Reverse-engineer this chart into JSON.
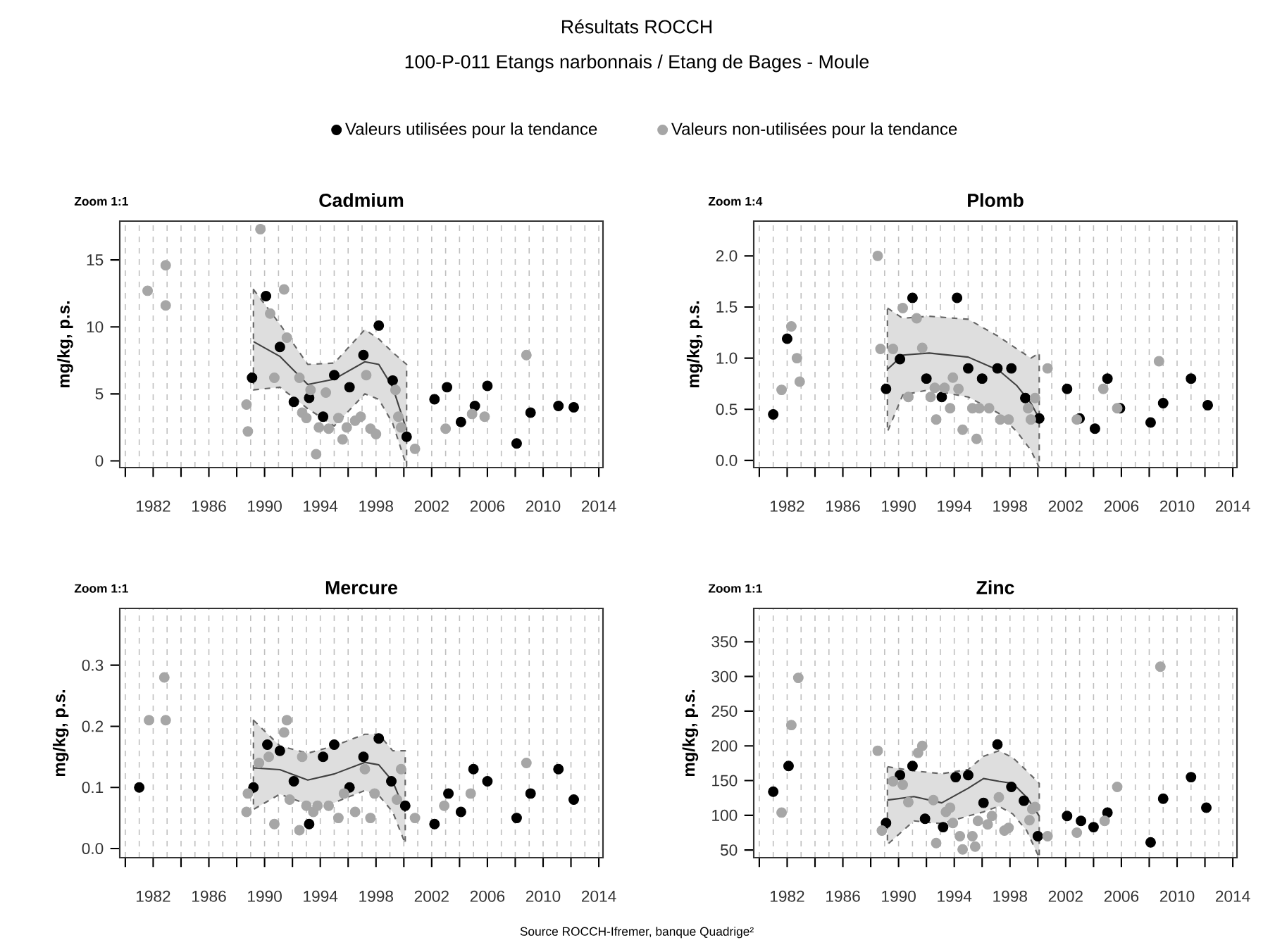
{
  "chart_data": [
    {
      "type": "scatter",
      "title": "Cadmium",
      "ylabel": "mg/kg, p.s.",
      "annotations": [
        "Zoom 1:1",
        "Résultats ROCCH",
        "100-P-011 Etangs narbonnais / Etang de Bages - Moule"
      ],
      "legend": "top",
      "grid": "x",
      "xlim": [
        1979.6,
        2014.3
      ],
      "xticks": [
        {
          "value": 1980,
          "label": null
        },
        1982,
        {
          "value": 1984,
          "label": null
        },
        1986,
        {
          "value": 1988,
          "label": null
        },
        1990,
        {
          "value": 1992,
          "label": null
        },
        1994,
        {
          "value": 1996,
          "label": null
        },
        1998,
        {
          "value": 2000,
          "label": null
        },
        2002,
        {
          "value": 2004,
          "label": null
        },
        2006,
        {
          "value": 2008,
          "label": null
        },
        2010,
        {
          "value": 2012,
          "label": null
        },
        2014
      ],
      "ylim": [
        -0.5,
        17.9
      ],
      "yticks": [
        0,
        5,
        10,
        15
      ],
      "series": [
        {
          "type": "line",
          "marker": "none",
          "color": "#404040",
          "x": [
            1989.2,
            1991.1,
            1993.1,
            1995.0,
            1997.2,
            1998.2,
            1999.2,
            2000.2
          ],
          "values": [
            8.9,
            7.8,
            5.7,
            6.1,
            7.4,
            7.2,
            5.5,
            2.3
          ],
          "upper": [
            12.8,
            10.2,
            7.2,
            7.3,
            9.8,
            9.1,
            8.1,
            7.2
          ],
          "lower": [
            5.3,
            5.5,
            3.9,
            2.6,
            5.0,
            4.6,
            2.8,
            -0.4
          ]
        },
        {
          "name": "Valeurs utilisées pour la tendance",
          "marker": "circle",
          "color": "#000000",
          "x": [
            1989.1,
            1990.1,
            1991.1,
            1992.1,
            1993.2,
            1994.2,
            1995.0,
            1996.1,
            1997.1,
            1998.2,
            1999.2,
            2000.2,
            2002.2,
            2003.1,
            2004.1,
            2005.1,
            2006.0,
            2008.1,
            2009.1,
            2011.1,
            2012.2
          ],
          "values": [
            6.2,
            12.3,
            8.5,
            4.4,
            4.7,
            3.3,
            6.4,
            5.5,
            7.9,
            10.1,
            6.0,
            1.8,
            4.6,
            5.5,
            2.9,
            4.1,
            5.6,
            1.3,
            3.6,
            4.1,
            4.0
          ]
        },
        {
          "name": "Valeurs non-utilisées pour la tendance",
          "marker": "circle",
          "color": "#a6a6a6",
          "x": [
            1981.6,
            1982.9,
            1982.9,
            1988.7,
            1988.8,
            1989.7,
            1990.4,
            1990.7,
            1991.4,
            1991.6,
            1992.5,
            1992.7,
            1993.0,
            1993.3,
            1993.7,
            1993.9,
            1994.4,
            1994.6,
            1995.3,
            1995.6,
            1995.9,
            1996.5,
            1996.9,
            1997.3,
            1997.6,
            1998.0,
            1999.4,
            1999.6,
            1999.8,
            2000.8,
            2003.0,
            2004.9,
            2005.8,
            2008.8
          ],
          "values": [
            12.7,
            14.6,
            11.6,
            4.2,
            2.2,
            17.3,
            11.0,
            6.2,
            12.8,
            9.2,
            6.2,
            3.6,
            3.2,
            5.3,
            0.5,
            2.5,
            5.1,
            2.4,
            3.2,
            1.6,
            2.5,
            3.0,
            3.3,
            6.4,
            2.4,
            2.0,
            5.3,
            3.3,
            2.5,
            0.9,
            2.4,
            3.5,
            3.3,
            7.9
          ]
        }
      ]
    },
    {
      "type": "scatter",
      "title": "Plomb",
      "ylabel": "mg/kg, p.s.",
      "annotations": [
        "Zoom 1:4"
      ],
      "grid": "x",
      "xlim": [
        1979.6,
        2014.3
      ],
      "xticks": [
        {
          "value": 1980,
          "label": null
        },
        1982,
        {
          "value": 1984,
          "label": null
        },
        1986,
        {
          "value": 1988,
          "label": null
        },
        1990,
        {
          "value": 1992,
          "label": null
        },
        1994,
        {
          "value": 1996,
          "label": null
        },
        1998,
        {
          "value": 2000,
          "label": null
        },
        2002,
        {
          "value": 2004,
          "label": null
        },
        2006,
        {
          "value": 2008,
          "label": null
        },
        2010,
        {
          "value": 2012,
          "label": null
        },
        2014
      ],
      "ylim": [
        -0.07,
        2.34
      ],
      "yticks": [
        {
          "value": 0,
          "label": "0.0"
        },
        0.5,
        {
          "value": 1,
          "label": "1.0"
        },
        1.5,
        {
          "value": 2,
          "label": "2.0"
        }
      ],
      "series": [
        {
          "type": "line",
          "marker": "none",
          "color": "#404040",
          "x": [
            1989.2,
            1990.3,
            1992.2,
            1995.0,
            1997.2,
            1998.5,
            1999.5,
            2000.1
          ],
          "values": [
            0.89,
            1.03,
            1.05,
            1.01,
            0.88,
            0.73,
            0.56,
            0.41
          ],
          "upper": [
            1.49,
            1.39,
            1.41,
            1.38,
            1.21,
            1.09,
            1.0,
            1.05
          ],
          "lower": [
            0.28,
            0.64,
            0.69,
            0.62,
            0.46,
            0.28,
            0.1,
            -0.07
          ]
        },
        {
          "marker": "circle",
          "color": "#000000",
          "x": [
            1981.0,
            1982.0,
            1989.1,
            1990.1,
            1991.0,
            1992.0,
            1993.1,
            1994.2,
            1995.0,
            1996.0,
            1997.1,
            1998.1,
            1999.1,
            2000.1,
            2002.1,
            2003.0,
            2004.1,
            2005.0,
            2005.9,
            2008.1,
            2009.0,
            2011.0,
            2012.2
          ],
          "values": [
            0.45,
            1.19,
            0.7,
            0.99,
            1.59,
            0.8,
            0.62,
            1.59,
            0.9,
            0.8,
            0.9,
            0.9,
            0.61,
            0.41,
            0.7,
            0.41,
            0.31,
            0.8,
            0.51,
            0.37,
            0.56,
            0.8,
            0.54
          ]
        },
        {
          "marker": "circle",
          "color": "#a6a6a6",
          "x": [
            1981.6,
            1982.3,
            1982.7,
            1982.9,
            1988.5,
            1988.7,
            1989.6,
            1990.3,
            1990.7,
            1991.3,
            1991.7,
            1992.3,
            1992.6,
            1992.7,
            1993.3,
            1993.7,
            1993.9,
            1994.3,
            1994.6,
            1995.3,
            1995.6,
            1995.8,
            1996.5,
            1997.3,
            1997.9,
            1999.3,
            1999.5,
            1999.8,
            2000.7,
            2002.8,
            2004.7,
            2005.7,
            2008.7
          ],
          "values": [
            0.69,
            1.31,
            1.0,
            0.77,
            2.0,
            1.09,
            1.09,
            1.49,
            0.62,
            1.39,
            1.1,
            0.62,
            0.71,
            0.4,
            0.71,
            0.51,
            0.81,
            0.7,
            0.3,
            0.51,
            0.21,
            0.51,
            0.51,
            0.4,
            0.4,
            0.51,
            0.4,
            0.61,
            0.9,
            0.4,
            0.7,
            0.51,
            0.97
          ]
        }
      ]
    },
    {
      "type": "scatter",
      "title": "Mercure",
      "ylabel": "mg/kg, p.s.",
      "annotations": [
        "Zoom 1:1",
        "Source ROCCH-Ifremer, banque Quadrige²"
      ],
      "grid": "x",
      "xlim": [
        1979.6,
        2014.3
      ],
      "xticks": [
        {
          "value": 1980,
          "label": null
        },
        1982,
        {
          "value": 1984,
          "label": null
        },
        1986,
        {
          "value": 1988,
          "label": null
        },
        1990,
        {
          "value": 1992,
          "label": null
        },
        1994,
        {
          "value": 1996,
          "label": null
        },
        1998,
        {
          "value": 2000,
          "label": null
        },
        2002,
        {
          "value": 2004,
          "label": null
        },
        2006,
        {
          "value": 2008,
          "label": null
        },
        2010,
        {
          "value": 2012,
          "label": null
        },
        2014
      ],
      "ylim": [
        -0.015,
        0.393
      ],
      "yticks": [
        {
          "value": 0,
          "label": "0.0"
        },
        0.1,
        0.2,
        0.3
      ],
      "series": [
        {
          "type": "line",
          "marker": "none",
          "color": "#404040",
          "x": [
            1989.2,
            1991.1,
            1993.1,
            1995.0,
            1997.2,
            1998.2,
            1999.2,
            2000.1
          ],
          "values": [
            0.132,
            0.129,
            0.112,
            0.122,
            0.141,
            0.137,
            0.11,
            0.06
          ],
          "upper": [
            0.21,
            0.168,
            0.156,
            0.168,
            0.187,
            0.187,
            0.16,
            0.16
          ],
          "lower": [
            0.064,
            0.089,
            0.072,
            0.075,
            0.095,
            0.087,
            0.06,
            0.008
          ]
        },
        {
          "marker": "circle",
          "color": "#000000",
          "x": [
            1981.0,
            1989.2,
            1990.2,
            1991.1,
            1992.1,
            1993.2,
            1994.2,
            1995.0,
            1996.1,
            1997.1,
            1998.2,
            1999.1,
            2000.1,
            2002.2,
            2003.2,
            2004.1,
            2005.0,
            2006.0,
            2008.1,
            2009.1,
            2011.1,
            2012.2
          ],
          "values": [
            0.1,
            0.1,
            0.17,
            0.16,
            0.11,
            0.04,
            0.15,
            0.17,
            0.1,
            0.15,
            0.18,
            0.11,
            0.07,
            0.04,
            0.09,
            0.06,
            0.13,
            0.11,
            0.05,
            0.09,
            0.13,
            0.08
          ]
        },
        {
          "marker": "circle",
          "color": "#a6a6a6",
          "x": [
            1981.7,
            1982.8,
            1982.9,
            1988.7,
            1988.8,
            1989.6,
            1990.3,
            1990.7,
            1991.4,
            1991.6,
            1991.8,
            1992.5,
            1992.7,
            1993.0,
            1993.5,
            1993.8,
            1994.6,
            1995.3,
            1995.7,
            1996.5,
            1997.2,
            1997.6,
            1997.9,
            1999.5,
            1999.8,
            2000.8,
            2002.9,
            2004.8,
            2008.8
          ],
          "values": [
            0.21,
            0.28,
            0.21,
            0.06,
            0.09,
            0.14,
            0.15,
            0.04,
            0.19,
            0.21,
            0.08,
            0.03,
            0.15,
            0.07,
            0.06,
            0.07,
            0.07,
            0.05,
            0.09,
            0.06,
            0.13,
            0.05,
            0.09,
            0.08,
            0.13,
            0.05,
            0.07,
            0.09,
            0.14
          ]
        }
      ]
    },
    {
      "type": "scatter",
      "title": "Zinc",
      "ylabel": "mg/kg, p.s.",
      "annotations": [
        "Zoom 1:1"
      ],
      "grid": "x",
      "xlim": [
        1979.6,
        2014.3
      ],
      "xticks": [
        {
          "value": 1980,
          "label": null
        },
        1982,
        {
          "value": 1984,
          "label": null
        },
        1986,
        {
          "value": 1988,
          "label": null
        },
        1990,
        {
          "value": 1992,
          "label": null
        },
        1994,
        {
          "value": 1996,
          "label": null
        },
        1998,
        {
          "value": 2000,
          "label": null
        },
        2002,
        {
          "value": 2004,
          "label": null
        },
        2006,
        {
          "value": 2008,
          "label": null
        },
        2010,
        {
          "value": 2012,
          "label": null
        },
        2014
      ],
      "ylim": [
        39,
        398
      ],
      "yticks": [
        50,
        100,
        150,
        200,
        250,
        300,
        350
      ],
      "series": [
        {
          "type": "line",
          "marker": "none",
          "color": "#404040",
          "x": [
            1989.2,
            1991.1,
            1993.1,
            1995.0,
            1996.1,
            1997.2,
            1998.2,
            1999.2,
            2000.1
          ],
          "values": [
            122,
            127,
            118,
            139,
            153,
            149,
            146,
            126,
            99
          ],
          "upper": [
            170,
            164,
            160,
            166,
            185,
            193,
            183,
            164,
            146
          ],
          "lower": [
            58,
            92,
            88,
            99,
            105,
            113,
            102,
            78,
            39
          ]
        },
        {
          "marker": "circle",
          "color": "#000000",
          "x": [
            1981.0,
            1982.1,
            1989.1,
            1990.1,
            1991.0,
            1991.9,
            1993.2,
            1994.1,
            1995.0,
            1996.1,
            1997.1,
            1998.1,
            1999.0,
            2000.0,
            2002.1,
            2003.1,
            2004.0,
            2005.0,
            2008.1,
            2009.0,
            2011.0,
            2012.1
          ],
          "values": [
            134,
            171,
            89,
            158,
            171,
            95,
            83,
            155,
            158,
            118,
            202,
            141,
            121,
            70,
            99,
            92,
            83,
            104,
            61,
            124,
            155,
            111
          ]
        },
        {
          "marker": "circle",
          "color": "#a6a6a6",
          "x": [
            1981.6,
            1982.3,
            1982.8,
            1988.5,
            1988.8,
            1989.6,
            1990.3,
            1990.7,
            1991.4,
            1991.7,
            1992.5,
            1992.7,
            1993.4,
            1993.7,
            1993.9,
            1994.4,
            1994.6,
            1995.3,
            1995.5,
            1995.7,
            1996.4,
            1996.7,
            1997.2,
            1997.6,
            1997.9,
            1999.4,
            1999.6,
            1999.8,
            2000.7,
            2002.8,
            2004.8,
            2005.7,
            2008.8
          ],
          "values": [
            104,
            230,
            298,
            193,
            78,
            149,
            144,
            119,
            190,
            200,
            122,
            60,
            105,
            111,
            89,
            70,
            51,
            70,
            55,
            92,
            87,
            99,
            126,
            78,
            82,
            93,
            109,
            112,
            70,
            75,
            92,
            141,
            314
          ]
        }
      ]
    }
  ]
}
